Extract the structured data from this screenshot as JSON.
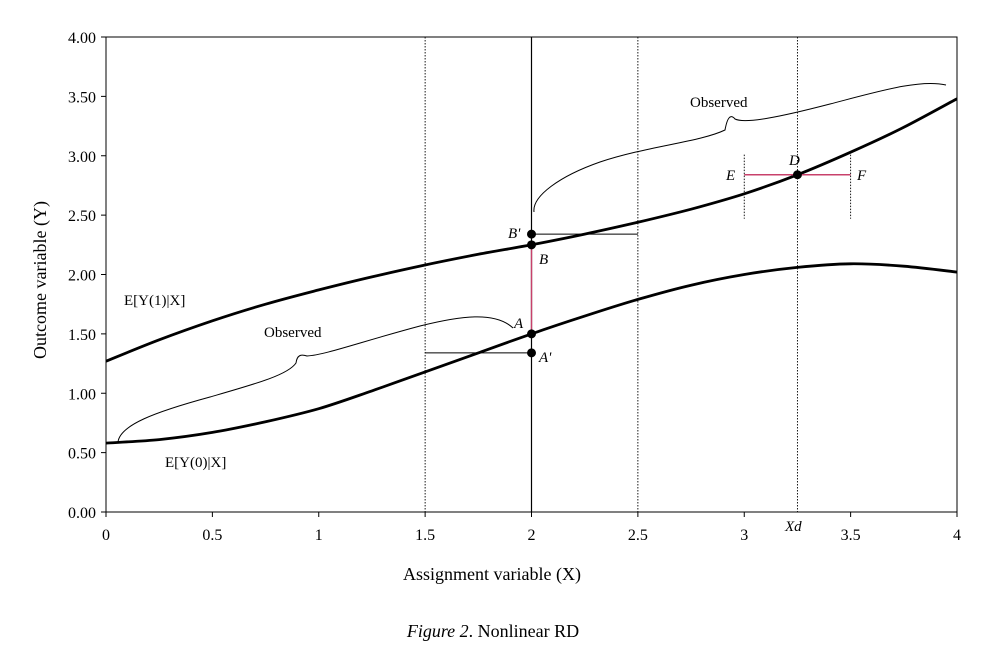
{
  "figure": {
    "caption_prefix": "Figure 2",
    "caption_text": ". Nonlinear RD"
  },
  "chart_data": {
    "type": "line",
    "title": "",
    "xlabel": "Assignment variable (X)",
    "ylabel": "Outcome variable (Y)",
    "xlim": [
      0,
      4
    ],
    "ylim": [
      0,
      4
    ],
    "xticks": [
      0,
      0.5,
      1,
      1.5,
      2,
      2.5,
      3,
      3.5,
      4
    ],
    "xtick_labels": [
      "0",
      "0.5",
      "1",
      "1.5",
      "2",
      "2.5",
      "3",
      "3.5",
      "4"
    ],
    "yticks": [
      0,
      0.5,
      1,
      1.5,
      2,
      2.5,
      3,
      3.5,
      4
    ],
    "ytick_labels": [
      "0.00",
      "0.50",
      "1.00",
      "1.50",
      "2.00",
      "2.50",
      "3.00",
      "3.50",
      "4.00"
    ],
    "grid": false,
    "series": [
      {
        "name": "E[Y(1)|X]",
        "x": [
          0,
          0.25,
          0.5,
          0.75,
          1,
          1.25,
          1.5,
          1.75,
          2,
          2.25,
          2.5,
          2.75,
          3,
          3.25,
          3.5,
          3.75,
          4
        ],
        "y": [
          1.27,
          1.45,
          1.61,
          1.75,
          1.87,
          1.98,
          2.08,
          2.17,
          2.25,
          2.34,
          2.44,
          2.55,
          2.68,
          2.84,
          3.03,
          3.24,
          3.48
        ]
      },
      {
        "name": "E[Y(0)|X]",
        "x": [
          0,
          0.25,
          0.5,
          0.75,
          1,
          1.25,
          1.5,
          1.75,
          2,
          2.25,
          2.5,
          2.75,
          3,
          3.25,
          3.5,
          3.75,
          4
        ],
        "y": [
          0.58,
          0.61,
          0.67,
          0.76,
          0.87,
          1.02,
          1.18,
          1.34,
          1.5,
          1.65,
          1.79,
          1.91,
          2.0,
          2.06,
          2.09,
          2.07,
          2.02
        ]
      }
    ],
    "vertical_lines": [
      {
        "x": 1.5,
        "style": "dotted"
      },
      {
        "x": 2,
        "style": "solid"
      },
      {
        "x": 2.5,
        "style": "dotted"
      },
      {
        "x": 3.25,
        "style": "dotted"
      }
    ],
    "points": [
      {
        "label": "A",
        "x": 2,
        "y": 1.5
      },
      {
        "label": "A'",
        "x": 2,
        "y": 1.34
      },
      {
        "label": "B",
        "x": 2,
        "y": 2.25
      },
      {
        "label": "B'",
        "x": 2,
        "y": 2.34
      },
      {
        "label": "D",
        "x": 3.25,
        "y": 2.84
      }
    ],
    "annotations": {
      "y1_curve": "E[Y(1)|X]",
      "y0_curve": "E[Y(0)|X]",
      "observed_left": "Observed",
      "observed_right": "Observed",
      "E": "E",
      "F": "F",
      "xd": "Xd"
    },
    "colors": {
      "curve": "#000000",
      "highlight": "#c8416b"
    }
  }
}
